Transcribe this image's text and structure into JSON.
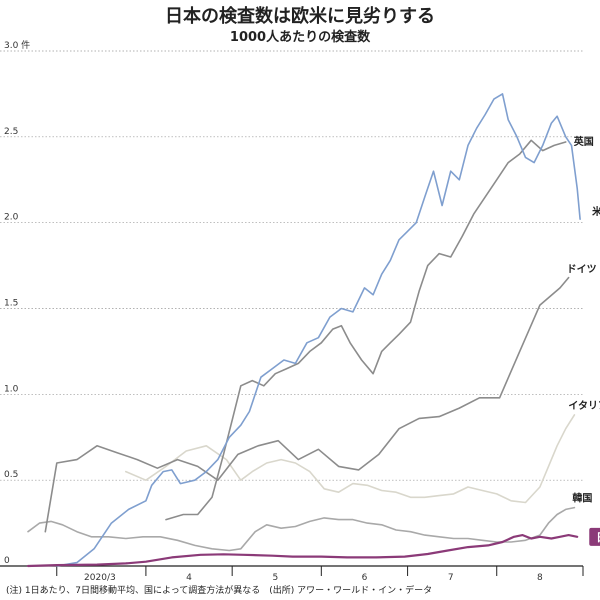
{
  "chart_data": {
    "type": "line",
    "title": "日本の検査数は欧米に見劣りする",
    "subtitle": "1000人あたりの検査数",
    "footnote": "(注) 1日あたり、7日間移動平均、国によって調査方法が異なる　(出所) アワー・ワールド・イン・データ",
    "ylim": [
      0,
      3.0
    ],
    "y_ticks": [
      {
        "value": 0,
        "label": "0"
      },
      {
        "value": 0.5,
        "label": "0.5"
      },
      {
        "value": 1.0,
        "label": "1.0"
      },
      {
        "value": 1.5,
        "label": "1.5"
      },
      {
        "value": 2.0,
        "label": "2.0"
      },
      {
        "value": 2.5,
        "label": "2.5"
      },
      {
        "value": 3.0,
        "label": "3.0 件"
      }
    ],
    "x_range": [
      "2020-02-20",
      "2020-08-31"
    ],
    "x_ticks": [
      "2020-03-01",
      "2020-04-01",
      "2020-05-01",
      "2020-06-01",
      "2020-07-01",
      "2020-08-01",
      "2020-08-31"
    ],
    "x_labels": [
      {
        "date": "2020-03-16",
        "label": "2020/3"
      },
      {
        "date": "2020-04-16",
        "label": "4"
      },
      {
        "date": "2020-05-16",
        "label": "5"
      },
      {
        "date": "2020-06-16",
        "label": "6"
      },
      {
        "date": "2020-07-16",
        "label": "7"
      },
      {
        "date": "2020-08-16",
        "label": "8"
      }
    ],
    "series": [
      {
        "name": "米国",
        "color": "#7f9fcf",
        "width": 1.6,
        "points": [
          [
            "2020-03-01",
            0.0
          ],
          [
            "2020-03-08",
            0.02
          ],
          [
            "2020-03-14",
            0.1
          ],
          [
            "2020-03-20",
            0.25
          ],
          [
            "2020-03-26",
            0.33
          ],
          [
            "2020-04-01",
            0.38
          ],
          [
            "2020-04-03",
            0.47
          ],
          [
            "2020-04-07",
            0.55
          ],
          [
            "2020-04-10",
            0.56
          ],
          [
            "2020-04-13",
            0.48
          ],
          [
            "2020-04-18",
            0.5
          ],
          [
            "2020-04-22",
            0.55
          ],
          [
            "2020-04-26",
            0.62
          ],
          [
            "2020-04-30",
            0.75
          ],
          [
            "2020-05-04",
            0.82
          ],
          [
            "2020-05-07",
            0.9
          ],
          [
            "2020-05-11",
            1.1
          ],
          [
            "2020-05-15",
            1.15
          ],
          [
            "2020-05-19",
            1.2
          ],
          [
            "2020-05-23",
            1.18
          ],
          [
            "2020-05-27",
            1.3
          ],
          [
            "2020-05-31",
            1.33
          ],
          [
            "2020-06-04",
            1.45
          ],
          [
            "2020-06-08",
            1.5
          ],
          [
            "2020-06-12",
            1.48
          ],
          [
            "2020-06-16",
            1.62
          ],
          [
            "2020-06-19",
            1.58
          ],
          [
            "2020-06-22",
            1.7
          ],
          [
            "2020-06-25",
            1.78
          ],
          [
            "2020-06-28",
            1.9
          ],
          [
            "2020-07-01",
            1.95
          ],
          [
            "2020-07-04",
            2.0
          ],
          [
            "2020-07-07",
            2.15
          ],
          [
            "2020-07-10",
            2.3
          ],
          [
            "2020-07-13",
            2.1
          ],
          [
            "2020-07-16",
            2.3
          ],
          [
            "2020-07-19",
            2.25
          ],
          [
            "2020-07-22",
            2.45
          ],
          [
            "2020-07-25",
            2.55
          ],
          [
            "2020-07-28",
            2.63
          ],
          [
            "2020-07-31",
            2.72
          ],
          [
            "2020-08-03",
            2.75
          ],
          [
            "2020-08-05",
            2.6
          ],
          [
            "2020-08-08",
            2.5
          ],
          [
            "2020-08-11",
            2.38
          ],
          [
            "2020-08-14",
            2.35
          ],
          [
            "2020-08-17",
            2.45
          ],
          [
            "2020-08-20",
            2.58
          ],
          [
            "2020-08-22",
            2.62
          ],
          [
            "2020-08-25",
            2.5
          ],
          [
            "2020-08-27",
            2.45
          ],
          [
            "2020-08-29",
            2.2
          ],
          [
            "2020-08-30",
            2.02
          ]
        ]
      },
      {
        "name": "英国",
        "color": "#8c8c8c",
        "width": 1.6,
        "points": [
          [
            "2020-04-08",
            0.27
          ],
          [
            "2020-04-14",
            0.3
          ],
          [
            "2020-04-19",
            0.3
          ],
          [
            "2020-04-24",
            0.4
          ],
          [
            "2020-04-28",
            0.65
          ],
          [
            "2020-05-01",
            0.85
          ],
          [
            "2020-05-04",
            1.05
          ],
          [
            "2020-05-08",
            1.08
          ],
          [
            "2020-05-12",
            1.05
          ],
          [
            "2020-05-16",
            1.12
          ],
          [
            "2020-05-20",
            1.15
          ],
          [
            "2020-05-24",
            1.18
          ],
          [
            "2020-05-28",
            1.25
          ],
          [
            "2020-06-01",
            1.3
          ],
          [
            "2020-06-05",
            1.38
          ],
          [
            "2020-06-08",
            1.4
          ],
          [
            "2020-06-11",
            1.3
          ],
          [
            "2020-06-15",
            1.2
          ],
          [
            "2020-06-19",
            1.12
          ],
          [
            "2020-06-22",
            1.25
          ],
          [
            "2020-06-25",
            1.3
          ],
          [
            "2020-06-28",
            1.35
          ],
          [
            "2020-07-02",
            1.42
          ],
          [
            "2020-07-05",
            1.6
          ],
          [
            "2020-07-08",
            1.75
          ],
          [
            "2020-07-12",
            1.82
          ],
          [
            "2020-07-16",
            1.8
          ],
          [
            "2020-07-20",
            1.92
          ],
          [
            "2020-07-24",
            2.05
          ],
          [
            "2020-07-28",
            2.15
          ],
          [
            "2020-08-01",
            2.25
          ],
          [
            "2020-08-05",
            2.35
          ],
          [
            "2020-08-09",
            2.4
          ],
          [
            "2020-08-13",
            2.48
          ],
          [
            "2020-08-17",
            2.42
          ],
          [
            "2020-08-21",
            2.45
          ],
          [
            "2020-08-25",
            2.47
          ]
        ]
      },
      {
        "name": "ドイツ",
        "color": "#8c8c8c",
        "width": 1.6,
        "points": [
          [
            "2020-02-26",
            0.2
          ],
          [
            "2020-03-01",
            0.6
          ],
          [
            "2020-03-08",
            0.62
          ],
          [
            "2020-03-15",
            0.7
          ],
          [
            "2020-03-22",
            0.66
          ],
          [
            "2020-03-29",
            0.62
          ],
          [
            "2020-04-05",
            0.57
          ],
          [
            "2020-04-12",
            0.62
          ],
          [
            "2020-04-19",
            0.58
          ],
          [
            "2020-04-26",
            0.5
          ],
          [
            "2020-05-03",
            0.65
          ],
          [
            "2020-05-10",
            0.7
          ],
          [
            "2020-05-17",
            0.73
          ],
          [
            "2020-05-24",
            0.62
          ],
          [
            "2020-05-31",
            0.68
          ],
          [
            "2020-06-07",
            0.58
          ],
          [
            "2020-06-14",
            0.56
          ],
          [
            "2020-06-21",
            0.65
          ],
          [
            "2020-06-28",
            0.8
          ],
          [
            "2020-07-05",
            0.86
          ],
          [
            "2020-07-12",
            0.87
          ],
          [
            "2020-07-19",
            0.92
          ],
          [
            "2020-07-26",
            0.98
          ],
          [
            "2020-08-02",
            0.98
          ],
          [
            "2020-08-09",
            1.25
          ],
          [
            "2020-08-16",
            1.52
          ],
          [
            "2020-08-23",
            1.62
          ],
          [
            "2020-08-26",
            1.68
          ]
        ]
      },
      {
        "name": "イタリア",
        "color": "#d9d7cc",
        "width": 1.6,
        "points": [
          [
            "2020-03-25",
            0.55
          ],
          [
            "2020-04-01",
            0.5
          ],
          [
            "2020-04-08",
            0.58
          ],
          [
            "2020-04-15",
            0.67
          ],
          [
            "2020-04-22",
            0.7
          ],
          [
            "2020-04-29",
            0.62
          ],
          [
            "2020-05-04",
            0.5
          ],
          [
            "2020-05-08",
            0.55
          ],
          [
            "2020-05-13",
            0.6
          ],
          [
            "2020-05-18",
            0.62
          ],
          [
            "2020-05-23",
            0.6
          ],
          [
            "2020-05-28",
            0.55
          ],
          [
            "2020-06-02",
            0.45
          ],
          [
            "2020-06-07",
            0.43
          ],
          [
            "2020-06-12",
            0.48
          ],
          [
            "2020-06-17",
            0.47
          ],
          [
            "2020-06-22",
            0.44
          ],
          [
            "2020-06-27",
            0.43
          ],
          [
            "2020-07-02",
            0.4
          ],
          [
            "2020-07-07",
            0.4
          ],
          [
            "2020-07-12",
            0.41
          ],
          [
            "2020-07-17",
            0.42
          ],
          [
            "2020-07-22",
            0.46
          ],
          [
            "2020-07-27",
            0.44
          ],
          [
            "2020-08-01",
            0.42
          ],
          [
            "2020-08-06",
            0.38
          ],
          [
            "2020-08-11",
            0.37
          ],
          [
            "2020-08-16",
            0.46
          ],
          [
            "2020-08-19",
            0.58
          ],
          [
            "2020-08-22",
            0.7
          ],
          [
            "2020-08-25",
            0.8
          ],
          [
            "2020-08-28",
            0.88
          ]
        ]
      },
      {
        "name": "韓国",
        "color": "#a9a9a9",
        "width": 1.6,
        "points": [
          [
            "2020-02-20",
            0.2
          ],
          [
            "2020-02-24",
            0.25
          ],
          [
            "2020-02-28",
            0.26
          ],
          [
            "2020-03-03",
            0.24
          ],
          [
            "2020-03-08",
            0.2
          ],
          [
            "2020-03-13",
            0.17
          ],
          [
            "2020-03-19",
            0.17
          ],
          [
            "2020-03-25",
            0.16
          ],
          [
            "2020-03-31",
            0.17
          ],
          [
            "2020-04-06",
            0.17
          ],
          [
            "2020-04-12",
            0.15
          ],
          [
            "2020-04-18",
            0.12
          ],
          [
            "2020-04-24",
            0.1
          ],
          [
            "2020-04-30",
            0.09
          ],
          [
            "2020-05-04",
            0.1
          ],
          [
            "2020-05-09",
            0.2
          ],
          [
            "2020-05-13",
            0.24
          ],
          [
            "2020-05-18",
            0.22
          ],
          [
            "2020-05-23",
            0.23
          ],
          [
            "2020-05-28",
            0.26
          ],
          [
            "2020-06-02",
            0.28
          ],
          [
            "2020-06-07",
            0.27
          ],
          [
            "2020-06-12",
            0.27
          ],
          [
            "2020-06-17",
            0.25
          ],
          [
            "2020-06-22",
            0.24
          ],
          [
            "2020-06-27",
            0.21
          ],
          [
            "2020-07-02",
            0.2
          ],
          [
            "2020-07-07",
            0.18
          ],
          [
            "2020-07-12",
            0.17
          ],
          [
            "2020-07-17",
            0.16
          ],
          [
            "2020-07-22",
            0.16
          ],
          [
            "2020-07-27",
            0.15
          ],
          [
            "2020-08-01",
            0.14
          ],
          [
            "2020-08-06",
            0.14
          ],
          [
            "2020-08-11",
            0.15
          ],
          [
            "2020-08-16",
            0.18
          ],
          [
            "2020-08-19",
            0.25
          ],
          [
            "2020-08-22",
            0.3
          ],
          [
            "2020-08-25",
            0.33
          ],
          [
            "2020-08-28",
            0.34
          ]
        ]
      },
      {
        "name": "日本",
        "color": "#8b3a78",
        "width": 2.2,
        "points": [
          [
            "2020-02-20",
            0.0
          ],
          [
            "2020-03-01",
            0.005
          ],
          [
            "2020-03-15",
            0.008
          ],
          [
            "2020-03-25",
            0.015
          ],
          [
            "2020-04-01",
            0.025
          ],
          [
            "2020-04-10",
            0.05
          ],
          [
            "2020-04-20",
            0.065
          ],
          [
            "2020-04-28",
            0.068
          ],
          [
            "2020-05-05",
            0.065
          ],
          [
            "2020-05-15",
            0.06
          ],
          [
            "2020-05-22",
            0.055
          ],
          [
            "2020-06-01",
            0.055
          ],
          [
            "2020-06-10",
            0.05
          ],
          [
            "2020-06-20",
            0.05
          ],
          [
            "2020-06-30",
            0.055
          ],
          [
            "2020-07-08",
            0.07
          ],
          [
            "2020-07-15",
            0.09
          ],
          [
            "2020-07-22",
            0.11
          ],
          [
            "2020-07-29",
            0.12
          ],
          [
            "2020-08-03",
            0.14
          ],
          [
            "2020-08-07",
            0.17
          ],
          [
            "2020-08-10",
            0.18
          ],
          [
            "2020-08-13",
            0.16
          ],
          [
            "2020-08-16",
            0.17
          ],
          [
            "2020-08-20",
            0.16
          ],
          [
            "2020-08-23",
            0.17
          ],
          [
            "2020-08-26",
            0.18
          ],
          [
            "2020-08-29",
            0.17
          ]
        ]
      }
    ],
    "labels": [
      {
        "series": "英国",
        "text": "英国"
      },
      {
        "series": "米国",
        "text": "米国"
      },
      {
        "series": "ドイツ",
        "text": "ドイツ"
      },
      {
        "series": "イタリア",
        "text": "イタリア"
      },
      {
        "series": "韓国",
        "text": "韓国"
      },
      {
        "series": "日本",
        "text": "日本",
        "badge": true,
        "badge_color": "#8b3a78"
      }
    ]
  }
}
